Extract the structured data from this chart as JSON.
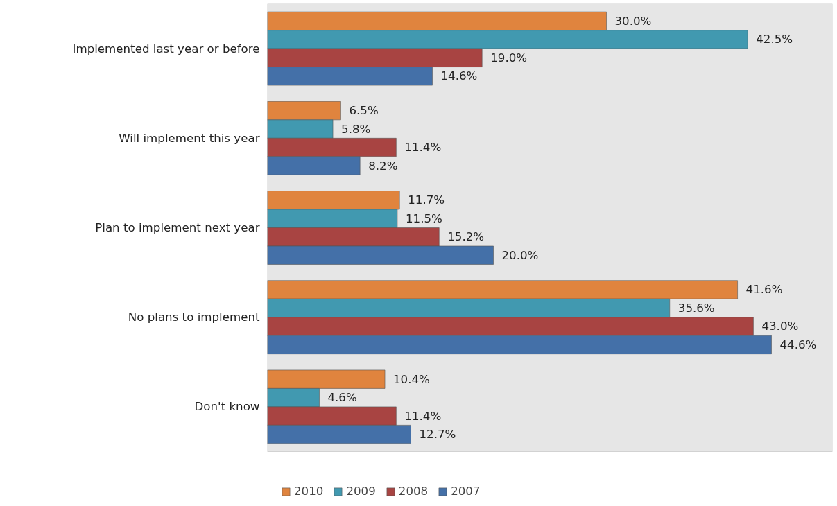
{
  "chart_data": {
    "type": "bar",
    "orientation": "horizontal",
    "categories": [
      "Implemented last year or before",
      "Will implement this year",
      "Plan to implement next year",
      "No plans to implement",
      "Don't know"
    ],
    "series": [
      {
        "name": "2010",
        "color": "#e0843e",
        "values": [
          30.0,
          6.5,
          11.7,
          41.6,
          10.4
        ],
        "value_labels": [
          "30.0%",
          "6.5%",
          "11.7%",
          "41.6%",
          "10.4%"
        ]
      },
      {
        "name": "2009",
        "color": "#4199b0",
        "values": [
          42.5,
          5.8,
          11.5,
          35.6,
          4.6
        ],
        "value_labels": [
          "42.5%",
          "5.8%",
          "11.5%",
          "35.6%",
          "4.6%"
        ]
      },
      {
        "name": "2008",
        "color": "#a84442",
        "values": [
          19.0,
          11.4,
          15.2,
          43.0,
          11.4
        ],
        "value_labels": [
          "19.0%",
          "11.4%",
          "15.2%",
          "43.0%",
          "11.4%"
        ]
      },
      {
        "name": "2007",
        "color": "#4470a8",
        "values": [
          14.6,
          8.2,
          20.0,
          44.6,
          12.7
        ],
        "value_labels": [
          "14.6%",
          "8.2%",
          "20.0%",
          "44.6%",
          "12.7%"
        ]
      }
    ],
    "xlim": [
      0,
      50
    ],
    "tick_labels": "y",
    "grid": false,
    "legend": "bottom"
  }
}
